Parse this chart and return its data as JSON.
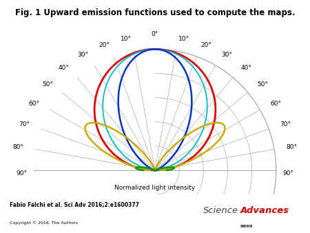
{
  "title": "Fig. 1 Upward emission functions used to compute the maps.",
  "xlabel": "Normalized light intensity",
  "background_color": "#ffffff",
  "grid_color": "#aaaaaa",
  "curves": {
    "red": {
      "color": "#dd0000",
      "lw": 2.0
    },
    "cyan": {
      "color": "#00bbcc",
      "lw": 1.3
    },
    "blue": {
      "color": "#0033cc",
      "lw": 1.8
    },
    "yellow": {
      "color": "#ccaa00",
      "lw": 1.8
    },
    "green": {
      "color": "#009900",
      "lw": 1.8
    }
  },
  "radial_ticks": [
    0.2,
    0.4,
    0.6,
    0.8,
    1.0
  ],
  "angle_ticks": [
    10,
    20,
    30,
    40,
    50,
    60,
    70,
    80,
    90
  ],
  "title_fontsize": 8.5,
  "label_fontsize": 6.5,
  "tick_fontsize": 6.5,
  "bottom_text1": "Fabio Falchi et al. Sci Adv 2016;2:e1600377",
  "bottom_text2": "Copyright © 2016, The Authors",
  "sci_color": "#444444",
  "adv_color": "#cc0000"
}
